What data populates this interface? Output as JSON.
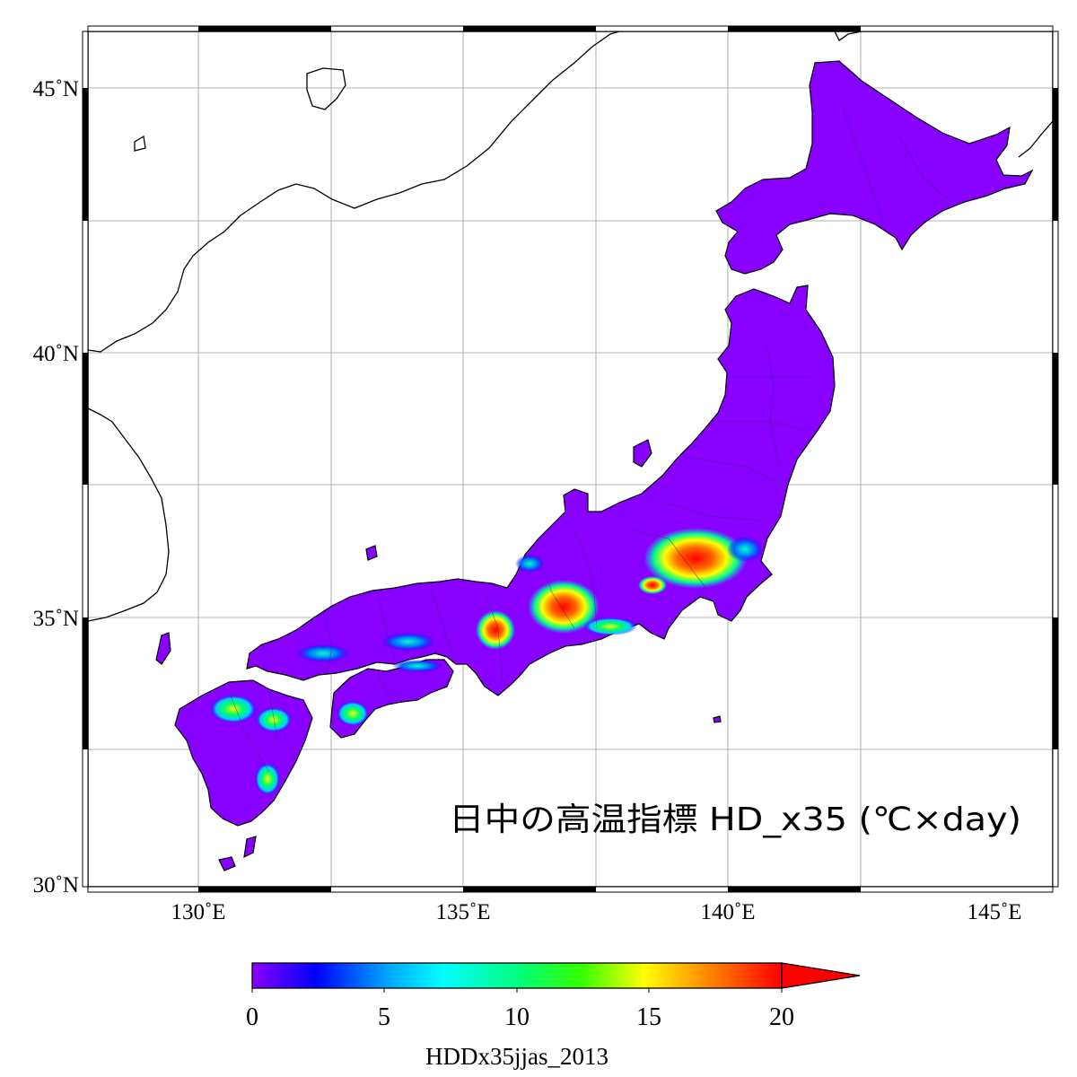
{
  "map": {
    "title": "日中の高温指標 HD_x35 (℃×day)",
    "lon_labels": [
      "130˚E",
      "135˚E",
      "140˚E",
      "145˚E"
    ],
    "lat_labels": [
      "30˚N",
      "35˚N",
      "40˚N",
      "45˚N"
    ],
    "lon_range": [
      128,
      146.2
    ],
    "lat_range": [
      29.9,
      46.05
    ],
    "land_color": "#8800ff",
    "hotspots": [
      {
        "name": "kanto-plain",
        "value": 20
      },
      {
        "name": "nobi-plain",
        "value": 20
      },
      {
        "name": "kyoto-basin",
        "value": 20
      },
      {
        "name": "kofu-basin",
        "value": 20
      },
      {
        "name": "saga-plain",
        "value": 15
      },
      {
        "name": "kumamoto",
        "value": 12
      },
      {
        "name": "miyazaki",
        "value": 15
      },
      {
        "name": "ehime",
        "value": 15
      }
    ]
  },
  "colorbar": {
    "tick_labels": [
      "0",
      "5",
      "10",
      "15",
      "20"
    ],
    "ticks": [
      0,
      5,
      10,
      15,
      20
    ],
    "range": [
      0,
      20
    ],
    "extend": "max",
    "caption": "HDDx35jjas_2013",
    "colors": [
      "#8800ff",
      "#0000ff",
      "#00ffff",
      "#00ff00",
      "#ffff00",
      "#ff0000"
    ]
  }
}
